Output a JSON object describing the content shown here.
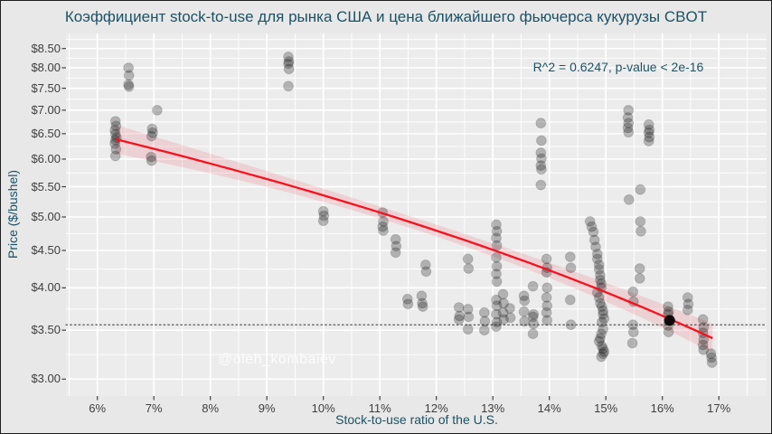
{
  "figure": {
    "title": "Коэффициент stock-to-use для рынка США и цена ближайшего фьючерса кукурузы CBOT",
    "annotation": "R^2 = 0.6247, p-value < 2e-16",
    "watermark": "@oleh_kombaiev"
  },
  "colors": {
    "accent_text": "#1b5266",
    "tick_text": "#3f3f3f",
    "figure_bg": "#e8e8e8",
    "panel_bg": "#ececec",
    "grid": "#ffffff",
    "point": "#111111",
    "trend": "#fb0f1c",
    "band": "rgba(240,90,105,0.18)",
    "hline": "#555555"
  },
  "chart_data": {
    "type": "scatter",
    "title": "Коэффициент stock-to-use для рынка США и цена ближайшего фьючерса кукурузы CBOT",
    "xlabel": "Stock-to-use ratio of the U.S.",
    "ylabel": "Price ($/bushel)",
    "annotation": "R^2 = 0.6247, p-value < 2e-16",
    "x_tick_labels": [
      "6%",
      "7%",
      "8%",
      "9%",
      "10%",
      "11%",
      "12%",
      "13%",
      "14%",
      "15%",
      "16%",
      "17%"
    ],
    "x_tick_values": [
      6,
      7,
      8,
      9,
      10,
      11,
      12,
      13,
      14,
      15,
      16,
      17
    ],
    "y_tick_labels": [
      "$8.50",
      "$8.00",
      "$7.50",
      "$7.00",
      "$6.50",
      "$6.00",
      "$5.50",
      "$5.00",
      "$4.50",
      "$4.00",
      "$3.50",
      "$3.00"
    ],
    "y_tick_values": [
      8.5,
      8.0,
      7.5,
      7.0,
      6.5,
      6.0,
      5.5,
      5.0,
      4.5,
      4.0,
      3.5,
      3.0
    ],
    "y_scale": "log10",
    "xlim": [
      5.45,
      17.84
    ],
    "ylim": [
      2.84,
      8.92
    ],
    "grid": true,
    "legend": null,
    "hline": 3.56,
    "trend": {
      "model": "linear",
      "intercept": 8.17,
      "slope": -0.2817,
      "x_start": 6.32,
      "x_end": 16.89,
      "r_squared": 0.6247,
      "p_value": "< 2e-16"
    },
    "highlight_point": [
      16.13,
      3.61
    ],
    "points": [
      [
        6.32,
        6.76
      ],
      [
        6.33,
        6.66
      ],
      [
        6.31,
        6.57
      ],
      [
        6.32,
        6.49
      ],
      [
        6.34,
        6.42
      ],
      [
        6.32,
        6.37
      ],
      [
        6.31,
        6.3
      ],
      [
        6.33,
        6.19
      ],
      [
        6.32,
        6.06
      ],
      [
        6.55,
        8.0
      ],
      [
        6.56,
        7.81
      ],
      [
        6.55,
        7.59
      ],
      [
        6.56,
        7.54
      ],
      [
        7.06,
        7.0
      ],
      [
        6.97,
        6.6
      ],
      [
        6.98,
        6.52
      ],
      [
        6.96,
        6.45
      ],
      [
        6.95,
        6.04
      ],
      [
        6.96,
        5.97
      ],
      [
        9.38,
        8.28
      ],
      [
        9.39,
        8.16
      ],
      [
        9.38,
        8.1
      ],
      [
        9.39,
        7.97
      ],
      [
        9.38,
        7.55
      ],
      [
        10.0,
        5.09
      ],
      [
        10.01,
        5.02
      ],
      [
        10.0,
        4.94
      ],
      [
        11.05,
        5.07
      ],
      [
        11.06,
        4.93
      ],
      [
        11.05,
        4.85
      ],
      [
        11.06,
        4.79
      ],
      [
        11.28,
        4.66
      ],
      [
        11.29,
        4.56
      ],
      [
        11.28,
        4.47
      ],
      [
        11.81,
        4.3
      ],
      [
        11.82,
        4.21
      ],
      [
        11.49,
        3.86
      ],
      [
        11.5,
        3.8
      ],
      [
        11.74,
        3.9
      ],
      [
        11.75,
        3.81
      ],
      [
        11.76,
        3.77
      ],
      [
        12.4,
        3.76
      ],
      [
        12.41,
        3.66
      ],
      [
        12.4,
        3.62
      ],
      [
        12.56,
        4.38
      ],
      [
        12.57,
        4.25
      ],
      [
        12.56,
        3.74
      ],
      [
        12.57,
        3.65
      ],
      [
        12.56,
        3.51
      ],
      [
        12.85,
        3.7
      ],
      [
        12.86,
        3.6
      ],
      [
        12.85,
        3.5
      ],
      [
        13.06,
        4.88
      ],
      [
        13.07,
        4.78
      ],
      [
        13.06,
        4.68
      ],
      [
        13.07,
        4.57
      ],
      [
        13.06,
        4.4
      ],
      [
        13.07,
        4.28
      ],
      [
        13.06,
        4.18
      ],
      [
        13.07,
        4.08
      ],
      [
        13.06,
        3.85
      ],
      [
        13.07,
        3.78
      ],
      [
        13.06,
        3.68
      ],
      [
        13.07,
        3.59
      ],
      [
        13.06,
        3.54
      ],
      [
        13.18,
        3.92
      ],
      [
        13.19,
        3.81
      ],
      [
        13.18,
        3.7
      ],
      [
        13.19,
        3.62
      ],
      [
        13.3,
        3.75
      ],
      [
        13.31,
        3.64
      ],
      [
        13.55,
        3.9
      ],
      [
        13.56,
        3.84
      ],
      [
        13.55,
        3.71
      ],
      [
        13.56,
        3.6
      ],
      [
        13.71,
        4.02
      ],
      [
        13.72,
        3.68
      ],
      [
        13.71,
        3.65
      ],
      [
        13.72,
        3.57
      ],
      [
        13.71,
        3.46
      ],
      [
        13.85,
        6.72
      ],
      [
        13.86,
        6.36
      ],
      [
        13.85,
        6.12
      ],
      [
        13.86,
        6.01
      ],
      [
        13.85,
        5.88
      ],
      [
        13.86,
        5.81
      ],
      [
        13.85,
        5.53
      ],
      [
        13.95,
        4.38
      ],
      [
        13.96,
        4.26
      ],
      [
        13.95,
        4.2
      ],
      [
        13.96,
        4.0
      ],
      [
        13.95,
        3.88
      ],
      [
        13.96,
        3.78
      ],
      [
        13.95,
        3.7
      ],
      [
        13.96,
        3.61
      ],
      [
        14.37,
        4.41
      ],
      [
        14.38,
        4.26
      ],
      [
        14.37,
        3.85
      ],
      [
        14.38,
        3.56
      ],
      [
        14.72,
        4.93
      ],
      [
        14.75,
        4.85
      ],
      [
        14.78,
        4.77
      ],
      [
        14.8,
        4.65
      ],
      [
        14.82,
        4.55
      ],
      [
        14.85,
        4.45
      ],
      [
        14.85,
        4.38
      ],
      [
        14.88,
        4.3
      ],
      [
        14.88,
        4.24
      ],
      [
        14.9,
        4.16
      ],
      [
        14.9,
        4.1
      ],
      [
        14.92,
        4.05
      ],
      [
        14.92,
        4.0
      ],
      [
        14.85,
        3.94
      ],
      [
        14.88,
        3.88
      ],
      [
        14.9,
        3.81
      ],
      [
        14.93,
        3.77
      ],
      [
        14.95,
        3.72
      ],
      [
        14.95,
        3.68
      ],
      [
        14.97,
        3.63
      ],
      [
        14.93,
        3.59
      ],
      [
        14.95,
        3.51
      ],
      [
        14.92,
        3.46
      ],
      [
        14.9,
        3.41
      ],
      [
        14.88,
        3.38
      ],
      [
        14.93,
        3.33
      ],
      [
        14.95,
        3.3
      ],
      [
        14.97,
        3.27
      ],
      [
        14.95,
        3.25
      ],
      [
        14.92,
        3.22
      ],
      [
        15.4,
        7.0
      ],
      [
        15.39,
        6.84
      ],
      [
        15.4,
        6.72
      ],
      [
        15.39,
        6.62
      ],
      [
        15.4,
        6.53
      ],
      [
        15.41,
        5.28
      ],
      [
        15.61,
        5.45
      ],
      [
        15.61,
        4.93
      ],
      [
        15.62,
        4.78
      ],
      [
        15.6,
        4.25
      ],
      [
        15.6,
        4.12
      ],
      [
        15.48,
        3.95
      ],
      [
        15.49,
        3.83
      ],
      [
        15.48,
        3.56
      ],
      [
        15.49,
        3.48
      ],
      [
        15.47,
        3.36
      ],
      [
        15.76,
        6.69
      ],
      [
        15.77,
        6.58
      ],
      [
        15.76,
        6.52
      ],
      [
        15.77,
        6.43
      ],
      [
        15.76,
        6.35
      ],
      [
        16.1,
        3.77
      ],
      [
        16.11,
        3.71
      ],
      [
        16.1,
        3.68
      ],
      [
        16.11,
        3.61
      ],
      [
        16.1,
        3.55
      ],
      [
        16.11,
        3.48
      ],
      [
        16.45,
        3.88
      ],
      [
        16.46,
        3.8
      ],
      [
        16.45,
        3.73
      ],
      [
        16.72,
        3.62
      ],
      [
        16.73,
        3.53
      ],
      [
        16.72,
        3.47
      ],
      [
        16.73,
        3.4
      ],
      [
        16.72,
        3.34
      ],
      [
        16.73,
        3.29
      ],
      [
        16.86,
        3.25
      ],
      [
        16.87,
        3.21
      ],
      [
        16.88,
        3.16
      ]
    ]
  }
}
